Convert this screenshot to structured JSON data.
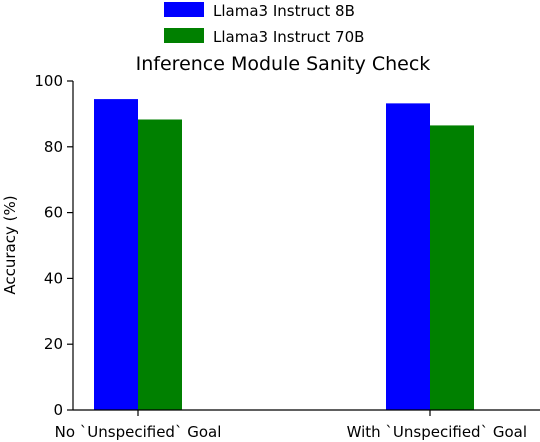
{
  "chart_data": {
    "type": "bar",
    "title": "Inference Module Sanity Check",
    "xlabel": "",
    "ylabel": "Accuracy (%)",
    "categories": [
      "No `Unspecified` Goal",
      "With `Unspecified` Goal"
    ],
    "series": [
      {
        "name": "Llama3 Instruct 8B",
        "color": "#0000ff",
        "values": [
          94.5,
          93.2
        ]
      },
      {
        "name": "Llama3 Instruct 70B",
        "color": "#008000",
        "values": [
          88.3,
          86.5
        ]
      }
    ],
    "ylim": [
      0,
      100
    ],
    "yticks": [
      0,
      20,
      40,
      60,
      80,
      100
    ],
    "grid": false,
    "legend_position": "top-center"
  }
}
